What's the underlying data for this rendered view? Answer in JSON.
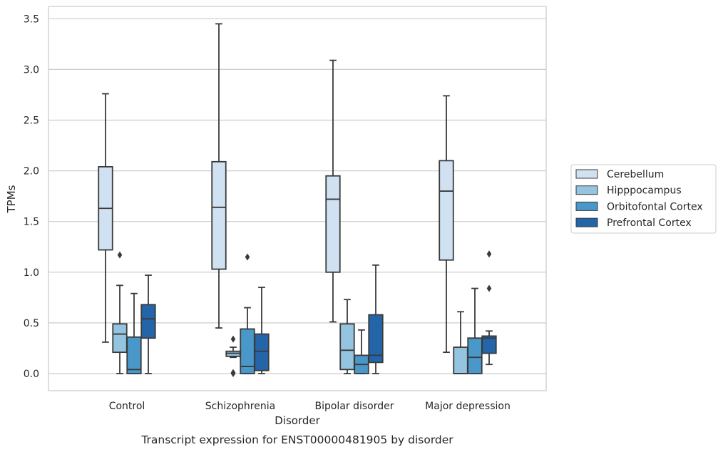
{
  "chart_data": {
    "type": "box",
    "caption": "Transcript expression for ENST00000481905 by disorder",
    "xlabel": "Disorder",
    "ylabel": "TPMs",
    "ylim": [
      -0.17,
      3.62
    ],
    "yticks": [
      0.0,
      0.5,
      1.0,
      1.5,
      2.0,
      2.5,
      3.0,
      3.5
    ],
    "ytick_labels": [
      "0.0",
      "0.5",
      "1.0",
      "1.5",
      "2.0",
      "2.5",
      "3.0",
      "3.5"
    ],
    "grid": true,
    "legend_position": "right",
    "categories": [
      "Control",
      "Schizophrenia",
      "Bipolar disorder",
      "Major depression"
    ],
    "series": [
      {
        "name": "Cerebellum",
        "color": "#d0e1f2",
        "boxes": [
          {
            "whisker_low": 0.31,
            "q1": 1.22,
            "median": 1.63,
            "q3": 2.04,
            "whisker_high": 2.76,
            "outliers": []
          },
          {
            "whisker_low": 0.45,
            "q1": 1.03,
            "median": 1.64,
            "q3": 2.09,
            "whisker_high": 3.45,
            "outliers": []
          },
          {
            "whisker_low": 0.51,
            "q1": 1.0,
            "median": 1.72,
            "q3": 1.95,
            "whisker_high": 3.09,
            "outliers": []
          },
          {
            "whisker_low": 0.21,
            "q1": 1.12,
            "median": 1.8,
            "q3": 2.1,
            "whisker_high": 2.74,
            "outliers": []
          }
        ]
      },
      {
        "name": "Hipppocampus",
        "color": "#94c4df",
        "boxes": [
          {
            "whisker_low": 0.0,
            "q1": 0.21,
            "median": 0.39,
            "q3": 0.49,
            "whisker_high": 0.87,
            "outliers": [
              1.17
            ]
          },
          {
            "whisker_low": 0.16,
            "q1": 0.17,
            "median": 0.2,
            "q3": 0.22,
            "whisker_high": 0.26,
            "outliers": [
              0.34,
              0.0,
              0.01
            ]
          },
          {
            "whisker_low": 0.0,
            "q1": 0.04,
            "median": 0.23,
            "q3": 0.49,
            "whisker_high": 0.73,
            "outliers": []
          },
          {
            "whisker_low": 0.0,
            "q1": 0.0,
            "median": 0.0,
            "q3": 0.26,
            "whisker_high": 0.61,
            "outliers": []
          }
        ]
      },
      {
        "name": "Orbitofontal Cortex",
        "color": "#4a98c9",
        "boxes": [
          {
            "whisker_low": 0.0,
            "q1": 0.0,
            "median": 0.04,
            "q3": 0.36,
            "whisker_high": 0.79,
            "outliers": []
          },
          {
            "whisker_low": 0.0,
            "q1": 0.0,
            "median": 0.07,
            "q3": 0.44,
            "whisker_high": 0.65,
            "outliers": [
              1.15
            ]
          },
          {
            "whisker_low": 0.0,
            "q1": 0.0,
            "median": 0.09,
            "q3": 0.18,
            "whisker_high": 0.43,
            "outliers": []
          },
          {
            "whisker_low": 0.0,
            "q1": 0.0,
            "median": 0.16,
            "q3": 0.35,
            "whisker_high": 0.84,
            "outliers": []
          }
        ]
      },
      {
        "name": "Prefrontal Cortex",
        "color": "#2464a9",
        "boxes": [
          {
            "whisker_low": 0.0,
            "q1": 0.35,
            "median": 0.54,
            "q3": 0.68,
            "whisker_high": 0.97,
            "outliers": []
          },
          {
            "whisker_low": 0.0,
            "q1": 0.03,
            "median": 0.22,
            "q3": 0.39,
            "whisker_high": 0.85,
            "outliers": []
          },
          {
            "whisker_low": 0.0,
            "q1": 0.11,
            "median": 0.18,
            "q3": 0.58,
            "whisker_high": 1.07,
            "outliers": []
          },
          {
            "whisker_low": 0.09,
            "q1": 0.2,
            "median": 0.35,
            "q3": 0.37,
            "whisker_high": 0.42,
            "outliers": [
              1.18,
              0.84
            ]
          }
        ]
      }
    ]
  }
}
